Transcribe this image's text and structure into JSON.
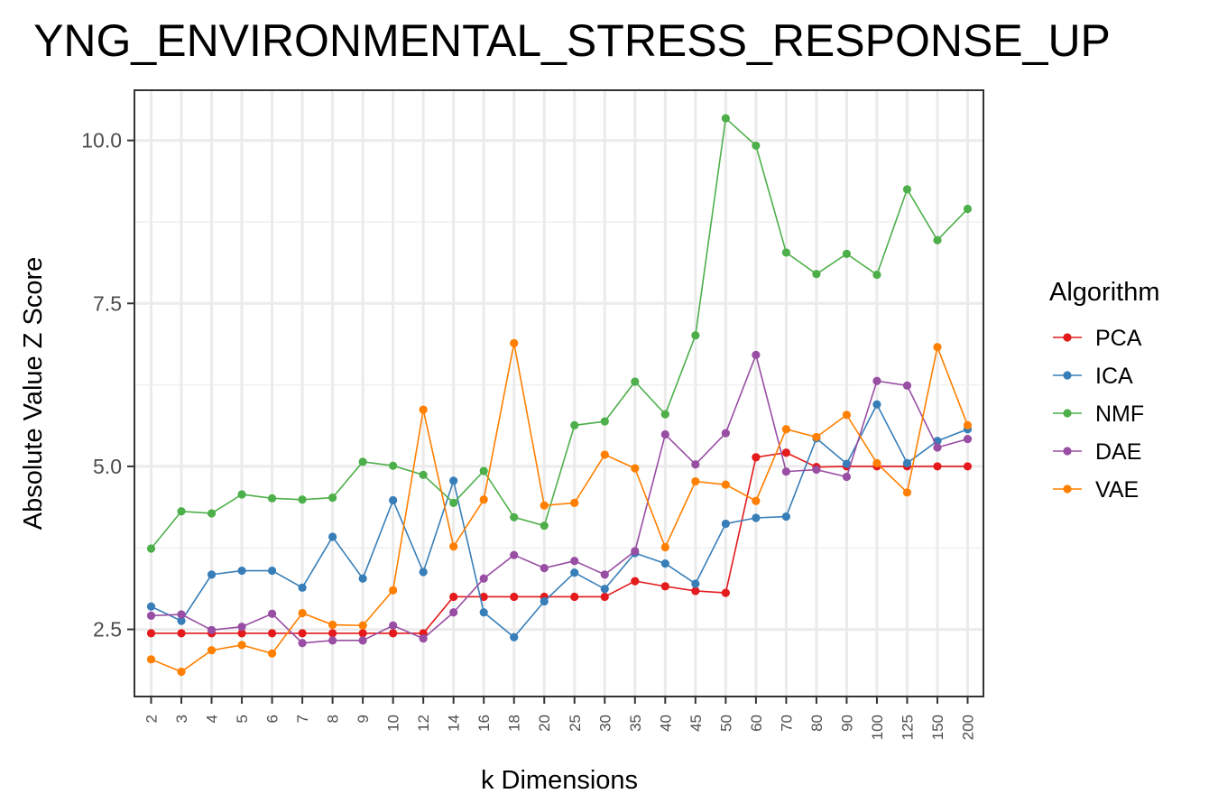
{
  "chart_data": {
    "type": "line",
    "title": "YNG_ENVIRONMENTAL_STRESS_RESPONSE_UP",
    "xlabel": "k Dimensions",
    "ylabel": "Absolute Value Z Score",
    "ylim": [
      1.47,
      10.77
    ],
    "yticks": [
      2.5,
      5.0,
      7.5,
      10.0
    ],
    "ytick_labels": [
      "2.5",
      "5.0",
      "7.5",
      "10.0"
    ],
    "grid": true,
    "legend_title": "Algorithm",
    "legend_position": "right",
    "categories": [
      "2",
      "3",
      "4",
      "5",
      "6",
      "7",
      "8",
      "9",
      "10",
      "12",
      "14",
      "16",
      "18",
      "20",
      "25",
      "30",
      "35",
      "40",
      "45",
      "50",
      "60",
      "70",
      "80",
      "90",
      "100",
      "125",
      "150",
      "200"
    ],
    "series": [
      {
        "name": "PCA",
        "color": "#e41a1c",
        "values": [
          2.44,
          2.44,
          2.44,
          2.44,
          2.44,
          2.44,
          2.44,
          2.44,
          2.44,
          2.44,
          3.0,
          3.0,
          3.0,
          3.0,
          3.0,
          3.0,
          3.24,
          3.16,
          3.09,
          3.06,
          5.14,
          5.21,
          4.99,
          5.0,
          5.0,
          5.0,
          5.0,
          5.0
        ]
      },
      {
        "name": "ICA",
        "color": "#377eb8",
        "values": [
          2.85,
          2.63,
          3.34,
          3.4,
          3.4,
          3.14,
          3.92,
          3.28,
          4.48,
          3.38,
          4.78,
          2.76,
          2.38,
          2.93,
          3.37,
          3.12,
          3.67,
          3.51,
          3.2,
          4.12,
          4.21,
          4.23,
          5.43,
          5.04,
          5.95,
          5.05,
          5.39,
          5.57
        ]
      },
      {
        "name": "NMF",
        "color": "#4daf4a",
        "values": [
          3.74,
          4.31,
          4.28,
          4.57,
          4.51,
          4.49,
          4.52,
          5.07,
          5.01,
          4.87,
          4.44,
          4.93,
          4.22,
          4.09,
          5.63,
          5.69,
          6.3,
          5.8,
          7.01,
          10.34,
          9.92,
          8.28,
          7.95,
          8.26,
          7.94,
          9.25,
          8.47,
          8.95
        ]
      },
      {
        "name": "DAE",
        "color": "#984ea3",
        "values": [
          2.71,
          2.73,
          2.49,
          2.54,
          2.74,
          2.29,
          2.33,
          2.33,
          2.56,
          2.36,
          2.76,
          3.28,
          3.64,
          3.44,
          3.55,
          3.34,
          3.7,
          5.49,
          5.03,
          5.51,
          6.71,
          4.92,
          4.95,
          4.84,
          6.31,
          6.24,
          5.29,
          5.42
        ]
      },
      {
        "name": "VAE",
        "color": "#ff7f00",
        "values": [
          2.04,
          1.85,
          2.18,
          2.26,
          2.13,
          2.75,
          2.57,
          2.56,
          3.1,
          5.87,
          3.77,
          4.49,
          6.89,
          4.4,
          4.44,
          5.18,
          4.97,
          3.76,
          4.77,
          4.72,
          4.47,
          5.57,
          5.45,
          5.79,
          5.05,
          4.6,
          6.83,
          5.63
        ]
      }
    ]
  }
}
